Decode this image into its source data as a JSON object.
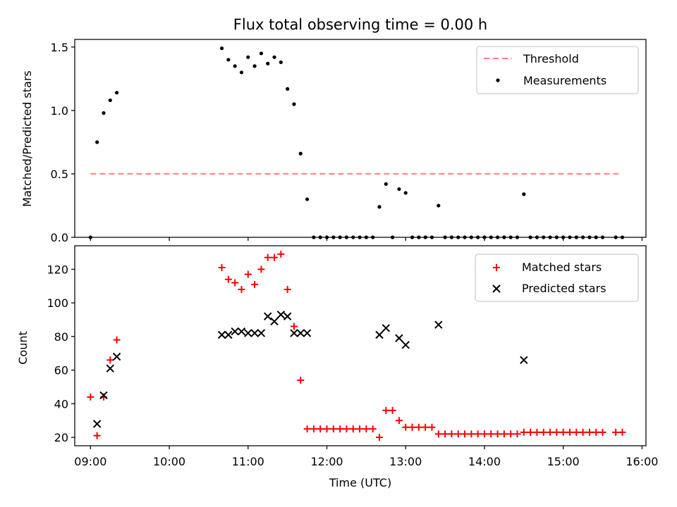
{
  "chart_data": [
    {
      "type": "scatter",
      "title": "Flux total observing time = 0.00 h",
      "xlabel": "",
      "ylabel": "Matched/Predicted stars",
      "xlim": [
        "08:48",
        "16:03"
      ],
      "ylim": [
        0,
        1.56
      ],
      "yticks": [
        {
          "value": 0,
          "label": "0.0"
        },
        {
          "value": 0.5,
          "label": "0.5"
        },
        {
          "value": 1,
          "label": "1.0"
        },
        {
          "value": 1.5,
          "label": "1.5"
        }
      ],
      "legend": {
        "position": "top-right"
      },
      "threshold": {
        "name": "Threshold",
        "color": "#ff7f7f",
        "style": "dashed",
        "x": [
          "09:00",
          "15:45"
        ],
        "y": 0.5
      },
      "series": [
        {
          "name": "Measurements",
          "color": "#000000",
          "marker": "dot",
          "points": [
            [
              "09:00",
              0.0
            ],
            [
              "09:05",
              0.75
            ],
            [
              "09:10",
              0.98
            ],
            [
              "09:15",
              1.08
            ],
            [
              "09:20",
              1.14
            ],
            [
              "10:40",
              1.49
            ],
            [
              "10:45",
              1.4
            ],
            [
              "10:50",
              1.35
            ],
            [
              "10:55",
              1.3
            ],
            [
              "11:00",
              1.42
            ],
            [
              "11:05",
              1.35
            ],
            [
              "11:10",
              1.45
            ],
            [
              "11:15",
              1.37
            ],
            [
              "11:20",
              1.42
            ],
            [
              "11:25",
              1.38
            ],
            [
              "11:30",
              1.17
            ],
            [
              "11:35",
              1.05
            ],
            [
              "11:40",
              0.66
            ],
            [
              "11:45",
              0.3
            ],
            [
              "11:50",
              0
            ],
            [
              "11:55",
              0
            ],
            [
              "12:00",
              0
            ],
            [
              "12:05",
              0
            ],
            [
              "12:10",
              0
            ],
            [
              "12:15",
              0
            ],
            [
              "12:20",
              0
            ],
            [
              "12:25",
              0
            ],
            [
              "12:30",
              0
            ],
            [
              "12:35",
              0
            ],
            [
              "12:40",
              0.24
            ],
            [
              "12:45",
              0.42
            ],
            [
              "12:50",
              0
            ],
            [
              "12:55",
              0.38
            ],
            [
              "13:00",
              0.35
            ],
            [
              "13:05",
              0
            ],
            [
              "13:10",
              0
            ],
            [
              "13:15",
              0
            ],
            [
              "13:20",
              0
            ],
            [
              "13:25",
              0.25
            ],
            [
              "13:30",
              0
            ],
            [
              "13:35",
              0
            ],
            [
              "13:40",
              0
            ],
            [
              "13:45",
              0
            ],
            [
              "13:50",
              0
            ],
            [
              "13:55",
              0
            ],
            [
              "14:00",
              0
            ],
            [
              "14:05",
              0
            ],
            [
              "14:10",
              0
            ],
            [
              "14:15",
              0
            ],
            [
              "14:20",
              0
            ],
            [
              "14:25",
              0
            ],
            [
              "14:30",
              0.34
            ],
            [
              "14:35",
              0
            ],
            [
              "14:40",
              0
            ],
            [
              "14:45",
              0
            ],
            [
              "14:50",
              0
            ],
            [
              "14:55",
              0
            ],
            [
              "15:00",
              0
            ],
            [
              "15:05",
              0
            ],
            [
              "15:10",
              0
            ],
            [
              "15:15",
              0
            ],
            [
              "15:20",
              0
            ],
            [
              "15:25",
              0
            ],
            [
              "15:30",
              0
            ],
            [
              "15:40",
              0
            ],
            [
              "15:45",
              0
            ]
          ]
        }
      ]
    },
    {
      "type": "scatter",
      "title": "",
      "xlabel": "Time (UTC)",
      "ylabel": "Count",
      "xlim": [
        "08:48",
        "16:03"
      ],
      "ylim": [
        15,
        134
      ],
      "yticks": [
        {
          "value": 20,
          "label": "20"
        },
        {
          "value": 40,
          "label": "40"
        },
        {
          "value": 60,
          "label": "60"
        },
        {
          "value": 80,
          "label": "80"
        },
        {
          "value": 100,
          "label": "100"
        },
        {
          "value": 120,
          "label": "120"
        }
      ],
      "xticks": [
        {
          "value": "09:00",
          "label": "09:00"
        },
        {
          "value": "10:00",
          "label": "10:00"
        },
        {
          "value": "11:00",
          "label": "11:00"
        },
        {
          "value": "12:00",
          "label": "12:00"
        },
        {
          "value": "13:00",
          "label": "13:00"
        },
        {
          "value": "14:00",
          "label": "14:00"
        },
        {
          "value": "15:00",
          "label": "15:00"
        },
        {
          "value": "16:00",
          "label": "16:00"
        }
      ],
      "legend": {
        "position": "top-right"
      },
      "series": [
        {
          "name": "Matched stars",
          "color": "#ff0000",
          "marker": "plus",
          "points": [
            [
              "09:00",
              44
            ],
            [
              "09:05",
              21
            ],
            [
              "09:10",
              44
            ],
            [
              "09:15",
              66
            ],
            [
              "09:20",
              78
            ],
            [
              "10:40",
              121
            ],
            [
              "10:45",
              114
            ],
            [
              "10:50",
              112
            ],
            [
              "10:55",
              108
            ],
            [
              "11:00",
              117
            ],
            [
              "11:05",
              111
            ],
            [
              "11:10",
              120
            ],
            [
              "11:15",
              127
            ],
            [
              "11:20",
              127
            ],
            [
              "11:25",
              129
            ],
            [
              "11:30",
              108
            ],
            [
              "11:35",
              86
            ],
            [
              "11:40",
              54
            ],
            [
              "11:45",
              25
            ],
            [
              "11:50",
              25
            ],
            [
              "11:55",
              25
            ],
            [
              "12:00",
              25
            ],
            [
              "12:05",
              25
            ],
            [
              "12:10",
              25
            ],
            [
              "12:15",
              25
            ],
            [
              "12:20",
              25
            ],
            [
              "12:25",
              25
            ],
            [
              "12:30",
              25
            ],
            [
              "12:35",
              25
            ],
            [
              "12:40",
              20
            ],
            [
              "12:45",
              36
            ],
            [
              "12:50",
              36
            ],
            [
              "12:55",
              30
            ],
            [
              "13:00",
              26
            ],
            [
              "13:05",
              26
            ],
            [
              "13:10",
              26
            ],
            [
              "13:15",
              26
            ],
            [
              "13:20",
              26
            ],
            [
              "13:25",
              22
            ],
            [
              "13:30",
              22
            ],
            [
              "13:35",
              22
            ],
            [
              "13:40",
              22
            ],
            [
              "13:45",
              22
            ],
            [
              "13:50",
              22
            ],
            [
              "13:55",
              22
            ],
            [
              "14:00",
              22
            ],
            [
              "14:05",
              22
            ],
            [
              "14:10",
              22
            ],
            [
              "14:15",
              22
            ],
            [
              "14:20",
              22
            ],
            [
              "14:25",
              22
            ],
            [
              "14:30",
              23
            ],
            [
              "14:35",
              23
            ],
            [
              "14:40",
              23
            ],
            [
              "14:45",
              23
            ],
            [
              "14:50",
              23
            ],
            [
              "14:55",
              23
            ],
            [
              "15:00",
              23
            ],
            [
              "15:05",
              23
            ],
            [
              "15:10",
              23
            ],
            [
              "15:15",
              23
            ],
            [
              "15:20",
              23
            ],
            [
              "15:25",
              23
            ],
            [
              "15:30",
              23
            ],
            [
              "15:40",
              23
            ],
            [
              "15:45",
              23
            ]
          ]
        },
        {
          "name": "Predicted stars",
          "color": "#000000",
          "marker": "x",
          "points": [
            [
              "09:05",
              28
            ],
            [
              "09:10",
              45
            ],
            [
              "09:15",
              61
            ],
            [
              "09:20",
              68
            ],
            [
              "10:40",
              81
            ],
            [
              "10:45",
              81
            ],
            [
              "10:50",
              83
            ],
            [
              "10:55",
              83
            ],
            [
              "11:00",
              82
            ],
            [
              "11:05",
              82
            ],
            [
              "11:10",
              82
            ],
            [
              "11:15",
              92
            ],
            [
              "11:20",
              89
            ],
            [
              "11:25",
              93
            ],
            [
              "11:30",
              92
            ],
            [
              "11:35",
              82
            ],
            [
              "11:40",
              82
            ],
            [
              "11:45",
              82
            ],
            [
              "12:40",
              81
            ],
            [
              "12:45",
              85
            ],
            [
              "12:55",
              79
            ],
            [
              "13:00",
              75
            ],
            [
              "13:25",
              87
            ],
            [
              "14:30",
              66
            ]
          ]
        }
      ]
    }
  ]
}
